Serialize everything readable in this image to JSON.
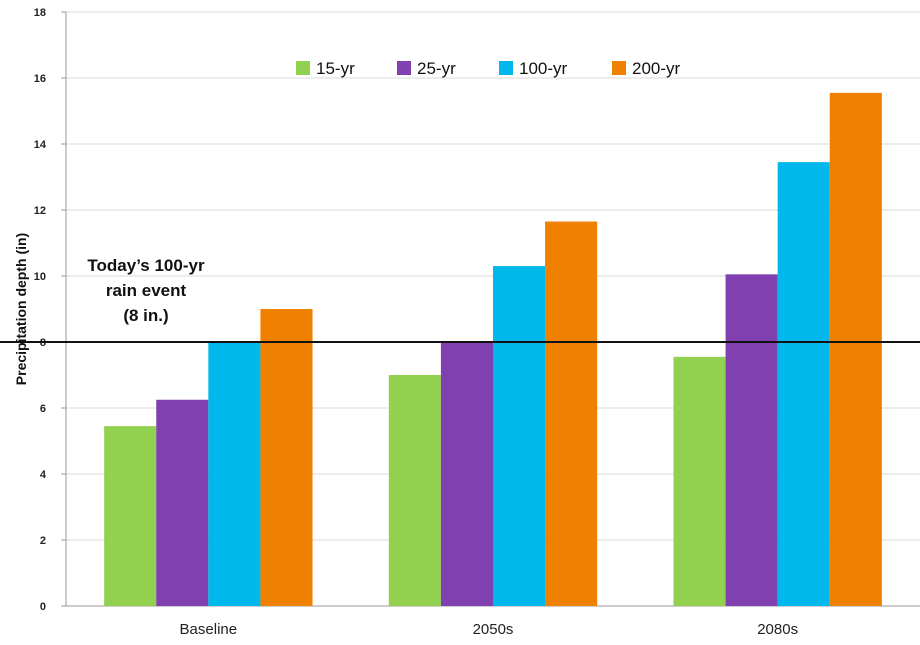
{
  "chart_data": {
    "type": "bar",
    "title": "",
    "xlabel": "",
    "ylabel": "Precipitation depth (in)",
    "ylim": [
      0,
      18
    ],
    "yticks": [
      0,
      2,
      4,
      6,
      8,
      10,
      12,
      14,
      16,
      18
    ],
    "categories": [
      "Baseline",
      "2050s",
      "2080s"
    ],
    "series": [
      {
        "name": "15-yr",
        "color": "#92d050",
        "values": [
          5.45,
          7.0,
          7.55
        ]
      },
      {
        "name": "25-yr",
        "color": "#8040b0",
        "values": [
          6.25,
          8.0,
          10.05
        ]
      },
      {
        "name": "100-yr",
        "color": "#00b8ec",
        "values": [
          8.0,
          10.3,
          13.45
        ]
      },
      {
        "name": "200-yr",
        "color": "#f08000",
        "values": [
          9.0,
          11.65,
          15.55
        ]
      }
    ],
    "grid": true,
    "legend": "top-center",
    "reference_line": {
      "value": 8,
      "label_lines": [
        "Today’s 100-yr",
        "rain event",
        "(8 in.)"
      ]
    }
  }
}
